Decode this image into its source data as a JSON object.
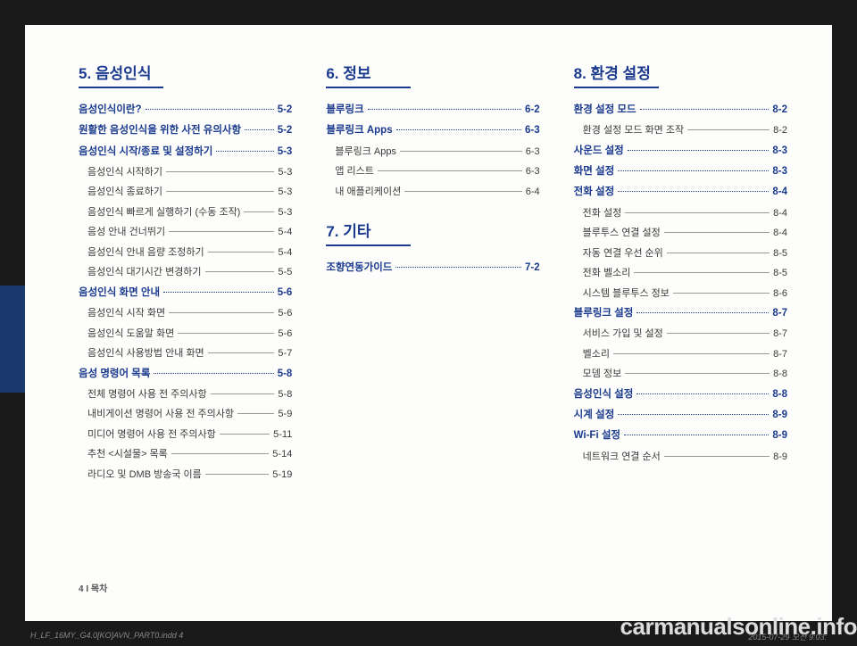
{
  "colors": {
    "accent": "#1a3a8e",
    "tab": "#1a3a6e",
    "page_bg": "#fdfdfb",
    "body_bg": "#1a1a1a",
    "text": "#3a3a3a",
    "leader_sub": "#9a9a9a"
  },
  "footer_left": "4 I 목차",
  "watermark": "carmanualsonline.info",
  "print_meta_left": "H_LF_16MY_G4.0[KO]AVN_PART0.indd   4",
  "print_meta_right": "2015-07-29   오전 9:03:",
  "columns": [
    {
      "chapters": [
        {
          "title": "5. 음성인식",
          "items": [
            {
              "type": "section",
              "label": "음성인식이란?",
              "page": "5-2"
            },
            {
              "type": "section",
              "label": "원활한 음성인식을 위한 사전 유의사항",
              "page": "5-2"
            },
            {
              "type": "section",
              "label": "음성인식 시작/종료 및 설정하기",
              "page": "5-3"
            },
            {
              "type": "sub",
              "label": "음성인식 시작하기",
              "page": "5-3"
            },
            {
              "type": "sub",
              "label": "음성인식 종료하기",
              "page": "5-3"
            },
            {
              "type": "sub",
              "label": "음성인식 빠르게 실행하기 (수동 조작)",
              "page": "5-3"
            },
            {
              "type": "sub",
              "label": "음성 안내 건너뛰기",
              "page": "5-4"
            },
            {
              "type": "sub",
              "label": "음성인식 안내 음량 조정하기",
              "page": "5-4"
            },
            {
              "type": "sub",
              "label": "음성인식 대기시간 변경하기",
              "page": "5-5"
            },
            {
              "type": "section",
              "label": "음성인식 화면 안내",
              "page": "5-6"
            },
            {
              "type": "sub",
              "label": "음성인식 시작 화면",
              "page": "5-6"
            },
            {
              "type": "sub",
              "label": "음성인식 도움말 화면",
              "page": "5-6"
            },
            {
              "type": "sub",
              "label": "음성인식 사용방법 안내 화면",
              "page": "5-7"
            },
            {
              "type": "section",
              "label": "음성 명령어 목록",
              "page": "5-8"
            },
            {
              "type": "sub",
              "label": "전체 명령어 사용 전 주의사항",
              "page": "5-8"
            },
            {
              "type": "sub",
              "label": "내비게이션 명령어 사용 전 주의사항",
              "page": "5-9"
            },
            {
              "type": "sub",
              "label": "미디어 명령어 사용 전 주의사항",
              "page": "5-11"
            },
            {
              "type": "sub",
              "label": "추천 <시설물> 목록",
              "page": "5-14"
            },
            {
              "type": "sub",
              "label": "라디오 및 DMB 방송국 이름",
              "page": "5-19"
            }
          ]
        }
      ]
    },
    {
      "chapters": [
        {
          "title": "6. 정보",
          "items": [
            {
              "type": "section",
              "label": "블루링크",
              "page": "6-2"
            },
            {
              "type": "section",
              "label": "블루링크 Apps",
              "page": "6-3"
            },
            {
              "type": "sub",
              "label": "블루링크 Apps",
              "page": "6-3"
            },
            {
              "type": "sub",
              "label": "앱 리스트",
              "page": "6-3"
            },
            {
              "type": "sub",
              "label": "내 애플리케이션",
              "page": "6-4"
            }
          ]
        },
        {
          "title": "7. 기타",
          "items": [
            {
              "type": "section",
              "label": "조향연동가이드",
              "page": "7-2"
            }
          ]
        }
      ]
    },
    {
      "chapters": [
        {
          "title": "8. 환경 설정",
          "items": [
            {
              "type": "section",
              "label": "환경 설정 모드",
              "page": "8-2"
            },
            {
              "type": "sub",
              "label": "환경 설정 모드 화면 조작",
              "page": "8-2"
            },
            {
              "type": "section",
              "label": "사운드 설정",
              "page": "8-3"
            },
            {
              "type": "section",
              "label": "화면 설정",
              "page": "8-3"
            },
            {
              "type": "section",
              "label": "전화 설정",
              "page": "8-4"
            },
            {
              "type": "sub",
              "label": "전화 설정",
              "page": "8-4"
            },
            {
              "type": "sub",
              "label": "블루투스 연결 설정",
              "page": "8-4"
            },
            {
              "type": "sub",
              "label": "자동 연결 우선 순위",
              "page": "8-5"
            },
            {
              "type": "sub",
              "label": "전화 벨소리",
              "page": "8-5"
            },
            {
              "type": "sub",
              "label": "시스템 블루투스 정보",
              "page": "8-6"
            },
            {
              "type": "section",
              "label": "블루링크 설정",
              "page": "8-7"
            },
            {
              "type": "sub",
              "label": "서비스 가입 및 설정",
              "page": "8-7"
            },
            {
              "type": "sub",
              "label": "벨소리",
              "page": "8-7"
            },
            {
              "type": "sub",
              "label": "모뎀 정보",
              "page": "8-8"
            },
            {
              "type": "section",
              "label": "음성인식 설정",
              "page": "8-8"
            },
            {
              "type": "section",
              "label": "시계 설정",
              "page": "8-9"
            },
            {
              "type": "section",
              "label": "Wi-Fi 설정",
              "page": "8-9"
            },
            {
              "type": "sub",
              "label": "네트워크 연결 순서",
              "page": "8-9"
            }
          ]
        }
      ]
    }
  ]
}
